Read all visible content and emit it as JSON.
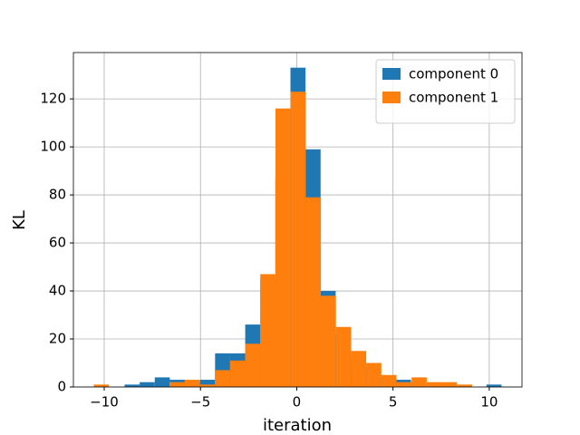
{
  "chart_data": {
    "type": "histogram",
    "x_label": "iteration",
    "y_label": "KL",
    "xlim": [
      -11.6,
      11.7
    ],
    "ylim": [
      0,
      139.3
    ],
    "xticks": [
      {
        "value": -10,
        "label": "−10"
      },
      {
        "value": -5,
        "label": "−5"
      },
      0,
      5,
      10
    ],
    "yticks": [
      0,
      20,
      40,
      60,
      80,
      100,
      120
    ],
    "grid": true,
    "legend": "upper right",
    "series": [
      {
        "name": "component 0",
        "color": "#1f77b4",
        "bins": [
          -8.94,
          -8.157,
          -7.374,
          -6.591,
          -5.808,
          -5.025,
          -4.242,
          -3.459,
          -2.676,
          -1.893,
          -1.11,
          -0.327,
          0.456,
          1.239,
          2.022,
          2.805,
          3.588,
          4.371,
          5.154,
          5.937,
          6.72,
          7.503,
          8.286,
          9.069,
          9.852,
          10.635
        ],
        "values": [
          1,
          2,
          4,
          3,
          2,
          3,
          14,
          14,
          26,
          45,
          87,
          133,
          99,
          40,
          22,
          13,
          8,
          4,
          3,
          2,
          1,
          1,
          0,
          0,
          1
        ]
      },
      {
        "name": "component 1",
        "color": "#ff7f0e",
        "bins": [
          -10.54,
          -9.754,
          -8.968,
          -8.182,
          -7.396,
          -6.61,
          -5.824,
          -5.038,
          -4.252,
          -3.466,
          -2.68,
          -1.894,
          -1.108,
          -0.322,
          0.464,
          1.25,
          2.036,
          2.822,
          3.608,
          4.394,
          5.18,
          5.966,
          6.752,
          7.538,
          8.324,
          9.11
        ],
        "values": [
          1,
          0,
          0,
          0,
          0,
          2,
          3,
          1,
          7,
          11,
          18,
          47,
          116,
          123,
          79,
          38,
          25,
          15,
          10,
          5,
          2,
          4,
          2,
          2,
          1
        ]
      }
    ]
  }
}
